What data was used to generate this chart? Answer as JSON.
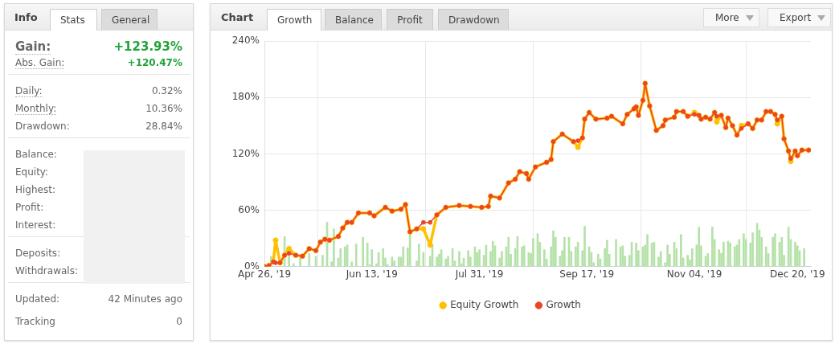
{
  "chart_data": [
    {
      "type": "other",
      "title": "Info",
      "annotations": [
        "Stats",
        "General",
        "Gain:",
        "+123.93%",
        "Abs. Gain:",
        "+120.47%",
        "Daily:",
        "0.32%",
        "Monthly:",
        "10.36%",
        "Drawdown:",
        "28.84%",
        "Balance:",
        "Equity:",
        "Highest:",
        "Profit:",
        "Interest:",
        "Deposits:",
        "Withdrawals:",
        "Updated:",
        "42 Minutes ago",
        "Tracking",
        "0"
      ]
    },
    {
      "type": "line",
      "title": "Chart",
      "annotations": [
        "Growth",
        "Balance",
        "Profit",
        "Drawdown",
        "More",
        "Export"
      ],
      "x": [
        "2019-04-26",
        "2019-04-28",
        "2019-04-30",
        "2019-05-01",
        "2019-05-03",
        "2019-05-05",
        "2019-05-07",
        "2019-05-10",
        "2019-05-13",
        "2019-05-16",
        "2019-05-19",
        "2019-05-21",
        "2019-05-23",
        "2019-05-25",
        "2019-05-29",
        "2019-05-31",
        "2019-06-02",
        "2019-06-04",
        "2019-06-07",
        "2019-06-12",
        "2019-06-14",
        "2019-06-19",
        "2019-06-22",
        "2019-06-26",
        "2019-06-28",
        "2019-06-30",
        "2019-07-03",
        "2019-07-06",
        "2019-07-09",
        "2019-07-12",
        "2019-07-16",
        "2019-07-22",
        "2019-07-27",
        "2019-08-01",
        "2019-08-04",
        "2019-08-05",
        "2019-08-09",
        "2019-08-13",
        "2019-08-16",
        "2019-08-18",
        "2019-08-21",
        "2019-08-22",
        "2019-08-25",
        "2019-08-30",
        "2019-09-01",
        "2019-09-02",
        "2019-09-06",
        "2019-09-11",
        "2019-09-13",
        "2019-09-15",
        "2019-09-16",
        "2019-09-18",
        "2019-09-21",
        "2019-09-26",
        "2019-09-28",
        "2019-10-03",
        "2019-10-05",
        "2019-10-08",
        "2019-10-09",
        "2019-10-10",
        "2019-10-12",
        "2019-10-13",
        "2019-10-15",
        "2019-10-18",
        "2019-10-21",
        "2019-10-22",
        "2019-10-26",
        "2019-10-27",
        "2019-10-30",
        "2019-11-01",
        "2019-11-04",
        "2019-11-06",
        "2019-11-07",
        "2019-11-09",
        "2019-11-11",
        "2019-11-13",
        "2019-11-14",
        "2019-11-16",
        "2019-11-18",
        "2019-11-19",
        "2019-11-21",
        "2019-11-23",
        "2019-11-25",
        "2019-11-28",
        "2019-11-30",
        "2019-12-02",
        "2019-12-04",
        "2019-12-06",
        "2019-12-08",
        "2019-12-10",
        "2019-12-11",
        "2019-12-13",
        "2019-12-14",
        "2019-12-16",
        "2019-12-17",
        "2019-12-19",
        "2019-12-20",
        "2019-12-22",
        "2019-12-25"
      ],
      "series": [
        {
          "type": "bar",
          "color": "#b5e2a8",
          "x": [
            "2019-04-29",
            "2019-05-03",
            "2019-05-05",
            "2019-05-07",
            "2019-05-09",
            "2019-05-12",
            "2019-05-14",
            "2019-05-16",
            "2019-05-19",
            "2019-05-20",
            "2019-05-22",
            "2019-05-24",
            "2019-05-26",
            "2019-05-27",
            "2019-05-29",
            "2019-05-30",
            "2019-06-01",
            "2019-06-02",
            "2019-06-04",
            "2019-06-06",
            "2019-06-09",
            "2019-06-11",
            "2019-06-12",
            "2019-06-13",
            "2019-06-15",
            "2019-06-16",
            "2019-06-18",
            "2019-06-19",
            "2019-06-20",
            "2019-06-22",
            "2019-06-23",
            "2019-06-25",
            "2019-06-26",
            "2019-06-27",
            "2019-06-29",
            "2019-06-30",
            "2019-07-03",
            "2019-07-04",
            "2019-07-06",
            "2019-07-07",
            "2019-07-09",
            "2019-07-10",
            "2019-07-12",
            "2019-07-13",
            "2019-07-14",
            "2019-07-16",
            "2019-07-17",
            "2019-07-19",
            "2019-07-20",
            "2019-07-22",
            "2019-07-23",
            "2019-07-24",
            "2019-07-26",
            "2019-07-27",
            "2019-07-29",
            "2019-07-30",
            "2019-07-31",
            "2019-08-02",
            "2019-08-03",
            "2019-08-05",
            "2019-08-06",
            "2019-08-07",
            "2019-08-09",
            "2019-08-10",
            "2019-08-12",
            "2019-08-13",
            "2019-08-14",
            "2019-08-16",
            "2019-08-17",
            "2019-08-19",
            "2019-08-20",
            "2019-08-22",
            "2019-08-23",
            "2019-08-24",
            "2019-08-26",
            "2019-08-27",
            "2019-08-29",
            "2019-08-30",
            "2019-09-01",
            "2019-09-02",
            "2019-09-03",
            "2019-09-05",
            "2019-09-06",
            "2019-09-07",
            "2019-09-09",
            "2019-09-10",
            "2019-09-12",
            "2019-09-13",
            "2019-09-15",
            "2019-09-16",
            "2019-09-18",
            "2019-09-19",
            "2019-09-20",
            "2019-09-22",
            "2019-09-23",
            "2019-09-25",
            "2019-09-26",
            "2019-09-27",
            "2019-09-30",
            "2019-10-02",
            "2019-10-03",
            "2019-10-04",
            "2019-10-06",
            "2019-10-07",
            "2019-10-09",
            "2019-10-10",
            "2019-10-12",
            "2019-10-13",
            "2019-10-14",
            "2019-10-16",
            "2019-10-17",
            "2019-10-19",
            "2019-10-20",
            "2019-10-22",
            "2019-10-23",
            "2019-10-24",
            "2019-10-26",
            "2019-10-27",
            "2019-10-29",
            "2019-10-30",
            "2019-11-01",
            "2019-11-02",
            "2019-11-03",
            "2019-11-05",
            "2019-11-06",
            "2019-11-07",
            "2019-11-09",
            "2019-11-10",
            "2019-11-12",
            "2019-11-13",
            "2019-11-15",
            "2019-11-16",
            "2019-11-17",
            "2019-11-19",
            "2019-11-20",
            "2019-11-22",
            "2019-11-23",
            "2019-11-24",
            "2019-11-26",
            "2019-11-27",
            "2019-11-29",
            "2019-11-30",
            "2019-12-02",
            "2019-12-03",
            "2019-12-04",
            "2019-12-06",
            "2019-12-07",
            "2019-12-09",
            "2019-12-10",
            "2019-12-12",
            "2019-12-13",
            "2019-12-14",
            "2019-12-16",
            "2019-12-17",
            "2019-12-19",
            "2019-12-20",
            "2019-12-21",
            "2019-12-23"
          ],
          "values": [
            11,
            null,
            32,
            11,
            3,
            11,
            null,
            14,
            11,
            null,
            12,
            47,
            5,
            40,
            9,
            19,
            21,
            23,
            5,
            24,
            31,
            25,
            2,
            18,
            3,
            15,
            19,
            9,
            2,
            10,
            6,
            10,
            10,
            21,
            20,
            36,
            6,
            24,
            15,
            null,
            11,
            23,
            10,
            13,
            18,
            8,
            11,
            19,
            6,
            16,
            3,
            9,
            17,
            10,
            21,
            15,
            18,
            12,
            23,
            16,
            27,
            22,
            9,
            16,
            21,
            31,
            13,
            19,
            32,
            21,
            22,
            15,
            14,
            30,
            35,
            26,
            18,
            8,
            21,
            38,
            31,
            11,
            17,
            31,
            31,
            16,
            21,
            26,
            17,
            43,
            21,
            15,
            4,
            13,
            8,
            19,
            28,
            13,
            29,
            21,
            22,
            11,
            12,
            26,
            25,
            17,
            21,
            23,
            34,
            25,
            26,
            10,
            16,
            4,
            23,
            13,
            26,
            19,
            34,
            9,
            12,
            7,
            19,
            23,
            42,
            22,
            11,
            14,
            42,
            29,
            18,
            14,
            26,
            27,
            25,
            21,
            23,
            29,
            35,
            29,
            25,
            36,
            46,
            39,
            31,
            21,
            14,
            31,
            35,
            26,
            31,
            12,
            42,
            29,
            26,
            22,
            17,
            19
          ]
        },
        {
          "name": "Equity Growth",
          "color": "#ffc000",
          "values": [
            0,
            1,
            5,
            28,
            4,
            12,
            19,
            12,
            11,
            19,
            17,
            26,
            29,
            28,
            32,
            41,
            47,
            47,
            57,
            57,
            54,
            63,
            59,
            61,
            66,
            37,
            40,
            40,
            23,
            55,
            63,
            65,
            64,
            63,
            64,
            75,
            73,
            89,
            93,
            101,
            99,
            93,
            106,
            111,
            114,
            133,
            141,
            133,
            127,
            137,
            157,
            164,
            157,
            158,
            160,
            152,
            162,
            168,
            170,
            161,
            177,
            195,
            171,
            145,
            150,
            156,
            159,
            165,
            165,
            160,
            164,
            161,
            157,
            159,
            157,
            164,
            154,
            161,
            148,
            158,
            150,
            140,
            150,
            152,
            147,
            156,
            156,
            165,
            165,
            162,
            152,
            160,
            136,
            123,
            112,
            123,
            118,
            124,
            124
          ]
        },
        {
          "name": "Growth",
          "color": "#ea4528",
          "values": [
            0,
            1,
            5,
            4,
            4,
            12,
            14,
            12,
            11,
            19,
            17,
            26,
            29,
            28,
            32,
            41,
            47,
            47,
            57,
            57,
            54,
            63,
            59,
            61,
            66,
            37,
            40,
            47,
            47,
            55,
            63,
            65,
            64,
            63,
            64,
            75,
            73,
            89,
            93,
            101,
            99,
            93,
            106,
            111,
            114,
            133,
            141,
            133,
            134,
            137,
            157,
            164,
            157,
            158,
            160,
            152,
            162,
            168,
            170,
            161,
            177,
            195,
            171,
            145,
            150,
            156,
            159,
            165,
            165,
            160,
            162,
            161,
            157,
            159,
            157,
            164,
            160,
            161,
            148,
            158,
            150,
            140,
            147,
            152,
            147,
            156,
            156,
            165,
            165,
            162,
            156,
            160,
            136,
            123,
            115,
            123,
            118,
            124,
            124
          ]
        }
      ],
      "xlim": [
        "2019-04-26",
        "2019-12-26"
      ],
      "xticks": [
        {
          "value": "2019-04-26",
          "label": "Apr 26, '19"
        },
        {
          "value": "2019-06-13",
          "label": "Jun 13, '19"
        },
        {
          "value": "2019-07-31",
          "label": "Jul 31, '19"
        },
        {
          "value": "2019-09-17",
          "label": "Sep 17, '19"
        },
        {
          "value": "2019-11-04",
          "label": "Nov 04, '19"
        },
        {
          "value": "2019-12-20",
          "label": "Dec 20, '19"
        }
      ],
      "ylim": [
        0,
        240
      ],
      "yticks": [
        {
          "value": 0,
          "label": "0%"
        },
        {
          "value": 60,
          "label": "60%"
        },
        {
          "value": 120,
          "label": "120%"
        },
        {
          "value": 180,
          "label": "180%"
        },
        {
          "value": 240,
          "label": "240%"
        }
      ],
      "grid": true,
      "legend": "bottom",
      "marker": "circle"
    }
  ]
}
